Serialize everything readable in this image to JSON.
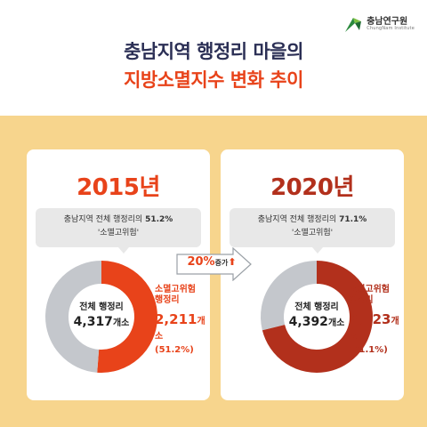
{
  "brand": {
    "name": "충남연구원",
    "sub": "ChungNam Institute"
  },
  "title": {
    "line1": "충남지역 행정리 마을의",
    "line2": "지방소멸지수 변화 추이"
  },
  "colors": {
    "accent": "#e8431a",
    "dark_accent": "#b2301c",
    "grey": "#c4c7cc",
    "background": "#f7d58d"
  },
  "change": {
    "value": "20%",
    "label": "증가"
  },
  "chart_data": [
    {
      "type": "pie",
      "title": "2015년",
      "note_prefix": "충남지역 전체 행정리의 ",
      "note_pct": "51.2%",
      "note_line2": "'소멸고위험'",
      "total_label": "전체 행정리",
      "total_value": "4,317",
      "unit": "개소",
      "risk_label": "소멸고위험 행정리",
      "risk_value": "2,211",
      "risk_pct": "(51.2%)",
      "slices": [
        {
          "name": "소멸고위험 행정리",
          "value": 2211,
          "color": "#e8431a"
        },
        {
          "name": "other",
          "value": 2106,
          "color": "#c4c7cc"
        }
      ]
    },
    {
      "type": "pie",
      "title": "2020년",
      "note_prefix": "충남지역 전체 행정리의 ",
      "note_pct": "71.1%",
      "note_line2": "'소멸고위험'",
      "total_label": "전체 행정리",
      "total_value": "4,392",
      "unit": "개소",
      "risk_label": "소멸고위험 행정리",
      "risk_value": "3,123",
      "risk_pct": "(71.1%)",
      "slices": [
        {
          "name": "소멸고위험 행정리",
          "value": 3123,
          "color": "#b2301c"
        },
        {
          "name": "other",
          "value": 1269,
          "color": "#c4c7cc"
        }
      ]
    }
  ]
}
